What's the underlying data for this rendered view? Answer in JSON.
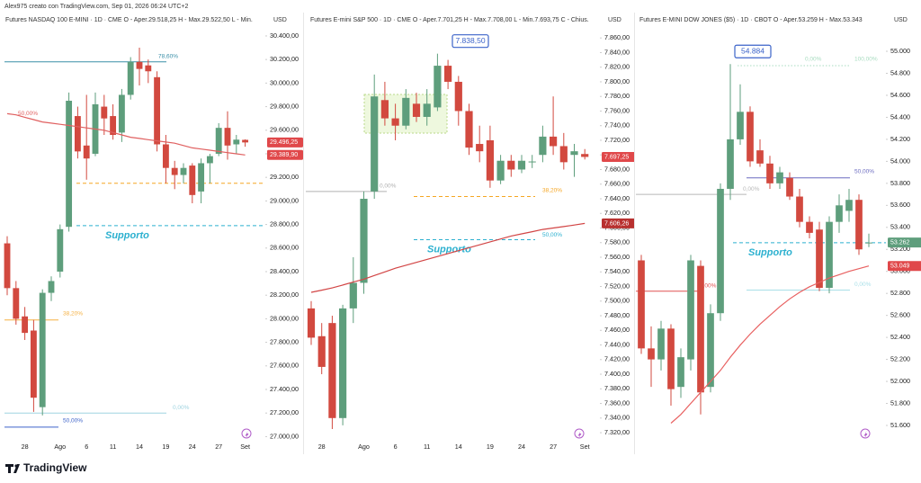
{
  "header": "Alex975 creato con TradingView.com, Sep 01, 2026 06:24 UTC+2",
  "brand": "TradingView",
  "chart_data": [
    {
      "type": "candlestick",
      "title": "Futures NASDAQ 100 E-MINI · 1D · CME  O - Aper.29.518,25  H - Max.29.522,50  L - Min.",
      "currency": "USD",
      "categories": [
        null,
        null,
        "28",
        null,
        null,
        null,
        "Ago",
        null,
        null,
        "6",
        null,
        null,
        "11",
        null,
        null,
        "14",
        null,
        null,
        "19",
        null,
        null,
        "24",
        null,
        null,
        "27",
        null,
        null,
        "Set"
      ],
      "open": [
        28640,
        28260,
        28020,
        27900,
        27250,
        28220,
        28400,
        28780,
        29720,
        29470,
        29400,
        29800,
        29720,
        29580,
        29900,
        30180,
        30150,
        30050,
        29480,
        29280,
        29220,
        29300,
        29080,
        29320,
        29400,
        29620,
        29480,
        29518.25
      ],
      "high": [
        28700,
        28320,
        28100,
        27990,
        28250,
        28360,
        28800,
        29920,
        29800,
        29900,
        29920,
        29900,
        29820,
        29950,
        30220,
        30300,
        30200,
        30100,
        29560,
        29340,
        29320,
        29320,
        29360,
        29400,
        29660,
        29760,
        29560,
        29522.5
      ],
      "low": [
        28200,
        27950,
        27820,
        27210,
        27180,
        28150,
        28350,
        28740,
        29360,
        29180,
        29380,
        29560,
        29520,
        29500,
        29860,
        29980,
        30000,
        29420,
        29150,
        29100,
        29150,
        28980,
        28980,
        29150,
        29380,
        29350,
        29400,
        29460
      ],
      "close": [
        28260,
        28000,
        27880,
        27330,
        28220,
        28320,
        28760,
        29850,
        29420,
        29360,
        29820,
        29700,
        29560,
        29900,
        30180,
        30120,
        30100,
        29480,
        29280,
        29220,
        29280,
        29050,
        29320,
        29380,
        29620,
        29470,
        29520,
        29496.25
      ],
      "up_color": "#5e9e7c",
      "down_color": "#d2493f",
      "series": [
        {
          "color": "#e06060",
          "values": [
            29740,
            29730,
            29710,
            29690,
            29670,
            29660,
            29650,
            29640,
            29630,
            29620,
            29610,
            29600,
            29580,
            29560,
            29540,
            29530,
            29520,
            29510,
            29500,
            29490,
            29470,
            29450,
            29440,
            29430,
            29420,
            29410,
            29400,
            29389.9
          ]
        }
      ],
      "ylim": [
        26965,
        30476
      ],
      "yticks": [
        {
          "value": 27000,
          "label": "27.000,00"
        },
        {
          "value": 27200,
          "label": "27.200,00"
        },
        {
          "value": 27400,
          "label": "27.400,00"
        },
        {
          "value": 27600,
          "label": "27.600,00"
        },
        {
          "value": 27800,
          "label": "27.800,00"
        },
        {
          "value": 28000,
          "label": "28.000,00"
        },
        {
          "value": 28200,
          "label": "28.200,00"
        },
        {
          "value": 28400,
          "label": "28.400,00"
        },
        {
          "value": 28600,
          "label": "28.600,00"
        },
        {
          "value": 28800,
          "label": "28.800,00"
        },
        {
          "value": 29000,
          "label": "29.000,00"
        },
        {
          "value": 29200,
          "label": "29.200,00"
        },
        {
          "value": 29400,
          "label": "29.400,00"
        },
        {
          "value": 29600,
          "label": "29.600,00"
        },
        {
          "value": 29800,
          "label": "29.800,00"
        },
        {
          "value": 30000,
          "label": "30.000,00"
        },
        {
          "value": 30200,
          "label": "30.200,00"
        },
        {
          "value": 30400,
          "label": "30.400,00"
        }
      ],
      "levels": [
        {
          "label": "78,60%",
          "value": 30180,
          "color": "#3a8fa8",
          "style": "solid"
        },
        {
          "label": "50,00%",
          "value": 29740,
          "color": "#e06060"
        },
        {
          "value": 29150,
          "color": "#f5a623",
          "style": "dashed"
        },
        {
          "note": "Supporto",
          "value": 28790,
          "color": "#2bb0cf",
          "style": "dashed"
        },
        {
          "label": "38,20%",
          "value": 27990,
          "color": "#f5b041",
          "style": "solid"
        },
        {
          "label": "0,00%",
          "value": 27200,
          "color": "#9fd3e0",
          "style": "solid"
        },
        {
          "label": "50,00%",
          "value": 27080,
          "color": "#3d63c9",
          "style": "solid"
        }
      ],
      "price_labels": [
        {
          "value": 29496.25,
          "label": "29.496,25",
          "color": "#e0484a"
        },
        {
          "value": 29389.9,
          "label": "29.389,90",
          "color": "#e0484a"
        }
      ]
    },
    {
      "type": "candlestick",
      "title": "Futures E-mini S&P 500 · 1D · CME  O - Aper.7.701,25  H - Max.7.708,00  L - Min.7.693,75  C - Chius.",
      "currency": "USD",
      "categories": [
        null,
        "28",
        null,
        null,
        null,
        "Ago",
        null,
        null,
        "6",
        null,
        null,
        "11",
        null,
        null,
        "14",
        null,
        null,
        "19",
        null,
        null,
        "24",
        null,
        null,
        "27",
        null,
        null,
        "Set"
      ],
      "open": [
        7490,
        7452,
        7470,
        7340,
        7490,
        7525,
        7650,
        7775,
        7750,
        7740,
        7770,
        7752,
        7765,
        7822,
        7800,
        7760,
        7715,
        7720,
        7665,
        7692,
        7680,
        7690,
        7700,
        7725,
        7712,
        7700,
        7701.25
      ],
      "high": [
        7500,
        7470,
        7480,
        7495,
        7560,
        7650,
        7810,
        7800,
        7770,
        7790,
        7785,
        7790,
        7838.5,
        7830,
        7808,
        7770,
        7740,
        7740,
        7700,
        7700,
        7700,
        7700,
        7740,
        7780,
        7730,
        7715,
        7708
      ],
      "low": [
        7440,
        7400,
        7325,
        7330,
        7470,
        7510,
        7640,
        7740,
        7720,
        7735,
        7745,
        7740,
        7760,
        7790,
        7740,
        7700,
        7690,
        7655,
        7660,
        7670,
        7675,
        7682,
        7690,
        7700,
        7680,
        7670,
        7693.75
      ],
      "close": [
        7450,
        7410,
        7340,
        7490,
        7525,
        7640,
        7780,
        7750,
        7740,
        7778,
        7752,
        7770,
        7822,
        7800,
        7760,
        7710,
        7705,
        7665,
        7692,
        7680,
        7692,
        7691,
        7725,
        7712,
        7690,
        7705,
        7697.25
      ],
      "up_color": "#5e9e7c",
      "down_color": "#d2493f",
      "series": [
        {
          "color": "#d24545",
          "values": [
            7512,
            7515,
            7518,
            7522,
            7526,
            7530,
            7535,
            7540,
            7545,
            7549,
            7553,
            7557,
            7561,
            7565,
            7569,
            7573,
            7577,
            7581,
            7585,
            7589,
            7592,
            7595,
            7598,
            7600,
            7602,
            7604,
            7606.26
          ]
        }
      ],
      "ylim": [
        7309,
        7875
      ],
      "yticks": [
        {
          "value": 7320,
          "label": "7.320,00"
        },
        {
          "value": 7340,
          "label": "7.340,00"
        },
        {
          "value": 7360,
          "label": "7.360,00"
        },
        {
          "value": 7380,
          "label": "7.380,00"
        },
        {
          "value": 7400,
          "label": "7.400,00"
        },
        {
          "value": 7420,
          "label": "7.420,00"
        },
        {
          "value": 7440,
          "label": "7.440,00"
        },
        {
          "value": 7460,
          "label": "7.460,00"
        },
        {
          "value": 7480,
          "label": "7.480,00"
        },
        {
          "value": 7500,
          "label": "7.500,00"
        },
        {
          "value": 7520,
          "label": "7.520,00"
        },
        {
          "value": 7540,
          "label": "7.540,00"
        },
        {
          "value": 7560,
          "label": "7.560,00"
        },
        {
          "value": 7580,
          "label": "7.580,00"
        },
        {
          "value": 7600,
          "label": "7.600,00"
        },
        {
          "value": 7620,
          "label": "7.620,00"
        },
        {
          "value": 7640,
          "label": "7.640,00"
        },
        {
          "value": 7660,
          "label": "7.660,00"
        },
        {
          "value": 7680,
          "label": "7.680,00"
        },
        {
          "value": 7700,
          "label": "7.700,00"
        },
        {
          "value": 7720,
          "label": "7.720,00"
        },
        {
          "value": 7740,
          "label": "7.740,00"
        },
        {
          "value": 7760,
          "label": "7.760,00"
        },
        {
          "value": 7780,
          "label": "7.780,00"
        },
        {
          "value": 7800,
          "label": "7.800,00"
        },
        {
          "value": 7820,
          "label": "7.820,00"
        },
        {
          "value": 7840,
          "label": "7.840,00"
        },
        {
          "value": 7860,
          "label": "7.860,00"
        }
      ],
      "levels": [
        {
          "label": "0,00%",
          "value": 7650,
          "color": "#b0b0b0",
          "style": "solid"
        },
        {
          "label": "38,20%",
          "value": 7643,
          "color": "#f5a623",
          "style": "dashed"
        },
        {
          "label": "50,00%",
          "note": "Supporto",
          "value": 7584,
          "color": "#2bb0cf",
          "style": "dashed"
        }
      ],
      "callout": {
        "value": 7838.5,
        "label": "7.838,50"
      },
      "price_labels": [
        {
          "value": 7697.25,
          "label": "7.697,25",
          "color": "#e0484a"
        },
        {
          "value": 7606.26,
          "label": "7.606,26",
          "color": "#b8302f"
        }
      ]
    },
    {
      "type": "candlestick",
      "title": "Futures E-MINI DOW JONES ($5) · 1D · CBOT  O - Aper.53.259  H - Max.53.343",
      "currency": "USD",
      "open": [
        53100,
        52300,
        52200,
        52480,
        51950,
        52200,
        53050,
        51950,
        52620,
        53750,
        54200,
        54450,
        54100,
        53980,
        53800,
        53850,
        53680,
        53450,
        53380,
        52850,
        53450,
        53550,
        53650,
        53259
      ],
      "high": [
        53150,
        52500,
        52550,
        52520,
        52300,
        53150,
        53100,
        52700,
        53800,
        54884,
        54700,
        54500,
        54200,
        54050,
        53950,
        53900,
        53750,
        53500,
        53450,
        53500,
        53700,
        53750,
        53700,
        53343
      ],
      "low": [
        52250,
        51950,
        52100,
        51780,
        51850,
        52100,
        51700,
        51900,
        52550,
        53650,
        54150,
        53950,
        53950,
        53750,
        53750,
        53650,
        53400,
        53300,
        52820,
        52800,
        53350,
        53450,
        53150,
        53220
      ],
      "close": [
        52300,
        52200,
        52480,
        51930,
        52220,
        53100,
        51900,
        52620,
        53750,
        54200,
        54450,
        54000,
        53980,
        53800,
        53900,
        53680,
        53450,
        53350,
        52850,
        53450,
        53600,
        53650,
        53200,
        53262
      ],
      "up_color": "#5e9e7c",
      "down_color": "#d2493f",
      "series": [
        {
          "color": "#e86060",
          "values": [
            null,
            null,
            null,
            51620,
            51700,
            51800,
            51900,
            52000,
            52100,
            52220,
            52330,
            52430,
            52520,
            52600,
            52680,
            52750,
            52810,
            52860,
            52900,
            52940,
            52970,
            53000,
            53025,
            53049
          ]
        }
      ],
      "ylim": [
        51461,
        55221
      ],
      "yticks": [
        {
          "value": 51600,
          "label": "51.600"
        },
        {
          "value": 51800,
          "label": "51.800"
        },
        {
          "value": 52000,
          "label": "52.000"
        },
        {
          "value": 52200,
          "label": "52.200"
        },
        {
          "value": 52400,
          "label": "52.400"
        },
        {
          "value": 52600,
          "label": "52.600"
        },
        {
          "value": 52800,
          "label": "52.800"
        },
        {
          "value": 53000,
          "label": "53.000"
        },
        {
          "value": 53200,
          "label": "53.200"
        },
        {
          "value": 53400,
          "label": "53.400"
        },
        {
          "value": 53600,
          "label": "53.600"
        },
        {
          "value": 53800,
          "label": "53.800"
        },
        {
          "value": 54000,
          "label": "54.000"
        },
        {
          "value": 54200,
          "label": "54.200"
        },
        {
          "value": 54400,
          "label": "54.400"
        },
        {
          "value": 54600,
          "label": "54.600"
        },
        {
          "value": 54800,
          "label": "54.800"
        },
        {
          "value": 55000,
          "label": "55.000"
        }
      ],
      "levels": [
        {
          "label": "0,00%",
          "value": 52820,
          "color": "#e05050",
          "style": "solid"
        },
        {
          "label": "0,00%",
          "value": 53700,
          "color": "#b8b8b8",
          "style": "solid"
        },
        {
          "label": "0,00%",
          "value": 54870,
          "color": "#a8dcc0",
          "style": "dotted"
        },
        {
          "label": "100,00%",
          "value": 54870,
          "color": "#a8dcc0"
        },
        {
          "label": "50,00%",
          "value": 53850,
          "color": "#6c6cc0",
          "style": "solid"
        },
        {
          "note": "Supporto",
          "value": 53260,
          "color": "#2bb0cf",
          "style": "dashed"
        },
        {
          "label": "0,00%",
          "value": 52830,
          "color": "#a8dfe8",
          "style": "solid"
        }
      ],
      "callout": {
        "value": 54884,
        "label": "54.884"
      },
      "price_labels": [
        {
          "value": 53262,
          "label": "53.262",
          "color": "#5e9e7c"
        },
        {
          "value": 53049,
          "label": "53.049",
          "color": "#e0484a"
        }
      ]
    }
  ]
}
